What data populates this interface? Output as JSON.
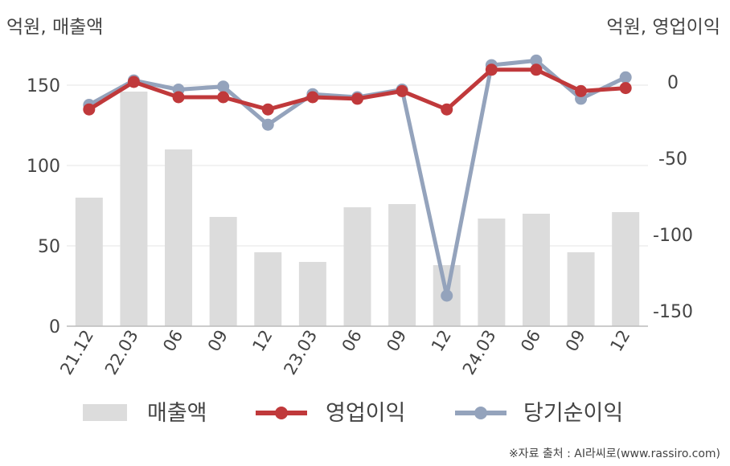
{
  "units": {
    "left": "억원, 매출액",
    "right": "억원, 영업이익"
  },
  "source": "※자료 출처 : AI라씨로(www.rassiro.com)",
  "legend": [
    "매출액",
    "영업이익",
    "당기순이익"
  ],
  "colors": {
    "bar": "#dcdcdc",
    "operating": "#c0393b",
    "net": "#94a3bc",
    "grid": "#e6e6e6",
    "axis": "#bbbbbb"
  },
  "chart_data": {
    "type": "bar",
    "categories": [
      "21.12",
      "22.03",
      "06",
      "09",
      "12",
      "23.03",
      "06",
      "09",
      "12",
      "24.03",
      "06",
      "09",
      "12"
    ],
    "left_axis": {
      "ticks": [
        0,
        50,
        100,
        150
      ],
      "ylim": [
        0,
        175
      ]
    },
    "right_axis": {
      "ticks": [
        0,
        -50,
        -100,
        -150
      ],
      "ylim": [
        -160,
        15
      ]
    },
    "series": [
      {
        "name": "매출액",
        "type": "bar",
        "axis": "left",
        "values": [
          80,
          146,
          110,
          68,
          46,
          40,
          74,
          76,
          38,
          67,
          70,
          46,
          71
        ]
      },
      {
        "name": "영업이익",
        "type": "line",
        "axis": "right",
        "values": [
          -18,
          0,
          -10,
          -10,
          -18,
          -10,
          -11,
          -6,
          -18,
          8,
          8,
          -6,
          -4
        ]
      },
      {
        "name": "당기순이익",
        "type": "line",
        "axis": "right",
        "values": [
          -15,
          1,
          -5,
          -3,
          -28,
          -8,
          -10,
          -5,
          -140,
          11,
          14,
          -11,
          3
        ]
      }
    ],
    "grid": true,
    "legend_position": "bottom"
  }
}
